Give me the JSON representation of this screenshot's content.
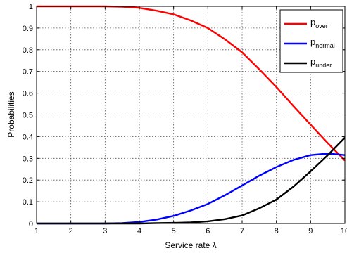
{
  "chart_data": {
    "type": "line",
    "title": "",
    "xlabel": "Service rate λ",
    "ylabel": "Probabilities",
    "xlim": [
      1,
      10
    ],
    "ylim": [
      0,
      1
    ],
    "xticks": [
      1,
      2,
      3,
      4,
      5,
      6,
      7,
      8,
      9,
      10
    ],
    "yticks": [
      0,
      0.1,
      0.2,
      0.3,
      0.4,
      0.5,
      0.6,
      0.7,
      0.8,
      0.9,
      1
    ],
    "grid": true,
    "legend_position": "top-right",
    "x": [
      1,
      2,
      3,
      3.5,
      4,
      4.5,
      5,
      5.5,
      6,
      6.5,
      7,
      7.5,
      8,
      8.5,
      9,
      9.5,
      10
    ],
    "series": [
      {
        "name": "p",
        "subscript": "over",
        "color": "#ff0000",
        "values": [
          1.0,
          1.0,
          1.0,
          0.998,
          0.993,
          0.98,
          0.963,
          0.935,
          0.9,
          0.848,
          0.788,
          0.71,
          0.628,
          0.54,
          0.455,
          0.37,
          0.29
        ]
      },
      {
        "name": "p",
        "subscript": "normal",
        "color": "#0000ff",
        "values": [
          0.0,
          0.0,
          0.0,
          0.002,
          0.007,
          0.018,
          0.035,
          0.06,
          0.09,
          0.13,
          0.175,
          0.22,
          0.26,
          0.293,
          0.315,
          0.322,
          0.315
        ]
      },
      {
        "name": "p",
        "subscript": "under",
        "color": "#000000",
        "values": [
          0.0,
          0.0,
          0.0,
          0.0,
          0.0,
          0.002,
          0.003,
          0.005,
          0.01,
          0.02,
          0.037,
          0.07,
          0.11,
          0.17,
          0.24,
          0.315,
          0.395
        ]
      }
    ]
  }
}
